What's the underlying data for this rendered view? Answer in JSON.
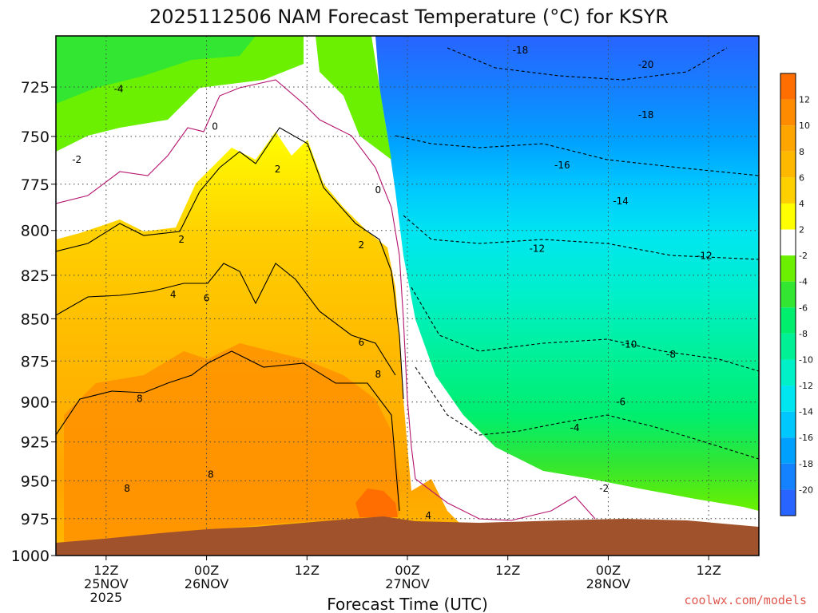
{
  "chart_data": {
    "type": "heatmap",
    "title": "2025112506 NAM Forecast Temperature (°C) for KSYR",
    "xlabel": "Forecast Time (UTC)",
    "credit": "coolwx.com/models",
    "y_axis": {
      "quantity": "pressure (hPa)",
      "inverted": true,
      "range": [
        700,
        1000
      ],
      "ticks": [
        725,
        750,
        775,
        800,
        825,
        850,
        875,
        900,
        925,
        950,
        975,
        1000
      ]
    },
    "x_axis": {
      "range_hours": [
        0,
        84
      ],
      "ticks": [
        {
          "hour": 6,
          "label": "12Z",
          "sub": "25NOV",
          "sub2": "2025"
        },
        {
          "hour": 18,
          "label": "00Z",
          "sub": "26NOV",
          "sub2": ""
        },
        {
          "hour": 30,
          "label": "12Z",
          "sub": "",
          "sub2": ""
        },
        {
          "hour": 42,
          "label": "00Z",
          "sub": "27NOV",
          "sub2": ""
        },
        {
          "hour": 54,
          "label": "12Z",
          "sub": "",
          "sub2": ""
        },
        {
          "hour": 66,
          "label": "00Z",
          "sub": "28NOV",
          "sub2": ""
        },
        {
          "hour": 78,
          "label": "12Z",
          "sub": "",
          "sub2": ""
        }
      ]
    },
    "grid": true,
    "colorbar": {
      "placement": "right",
      "levels": [
        {
          "label": "",
          "color": "#ff6e00"
        },
        {
          "label": "12",
          "color": "#ff8c00"
        },
        {
          "label": "10",
          "color": "#ffa500"
        },
        {
          "label": "8",
          "color": "#ffb800"
        },
        {
          "label": "6",
          "color": "#ffd000"
        },
        {
          "label": "4",
          "color": "#ffff00"
        },
        {
          "label": "2",
          "color": "#ffffff"
        },
        {
          "label": "-2",
          "color": "#6af000"
        },
        {
          "label": "-4",
          "color": "#32e632"
        },
        {
          "label": "-6",
          "color": "#00ee6e"
        },
        {
          "label": "-8",
          "color": "#00f096"
        },
        {
          "label": "-10",
          "color": "#00f0c8"
        },
        {
          "label": "-12",
          "color": "#00e6f0"
        },
        {
          "label": "-14",
          "color": "#00c8ff"
        },
        {
          "label": "-16",
          "color": "#00a0ff"
        },
        {
          "label": "-18",
          "color": "#1482ff"
        },
        {
          "label": "-20",
          "color": "#2864ff"
        }
      ]
    },
    "terrain_color": "#a0522d",
    "freezing_line_color": "#b4146e",
    "contour_labels": [
      {
        "text": "-18",
        "hour": 55.5,
        "p": 707
      },
      {
        "text": "-20",
        "hour": 70.5,
        "p": 714
      },
      {
        "text": "-4",
        "hour": 7.5,
        "p": 726
      },
      {
        "text": "-18",
        "hour": 70.5,
        "p": 739
      },
      {
        "text": "0",
        "hour": 19.0,
        "p": 745
      },
      {
        "text": "-16",
        "hour": 60.5,
        "p": 765
      },
      {
        "text": "-2",
        "hour": 2.5,
        "p": 762
      },
      {
        "text": "2",
        "hour": 26.5,
        "p": 767
      },
      {
        "text": "0",
        "hour": 38.5,
        "p": 778
      },
      {
        "text": "-14",
        "hour": 67.5,
        "p": 784
      },
      {
        "text": "2",
        "hour": 15.0,
        "p": 805
      },
      {
        "text": "2",
        "hour": 36.5,
        "p": 808
      },
      {
        "text": "-12",
        "hour": 57.5,
        "p": 810
      },
      {
        "text": "-12",
        "hour": 77.5,
        "p": 814
      },
      {
        "text": "4",
        "hour": 14.0,
        "p": 836
      },
      {
        "text": "6",
        "hour": 18.0,
        "p": 838
      },
      {
        "text": "-10",
        "hour": 68.5,
        "p": 865
      },
      {
        "text": "6",
        "hour": 36.5,
        "p": 864
      },
      {
        "text": "-8",
        "hour": 73.5,
        "p": 871
      },
      {
        "text": "8",
        "hour": 38.5,
        "p": 883
      },
      {
        "text": "8",
        "hour": 10.0,
        "p": 898
      },
      {
        "text": "-6",
        "hour": 67.5,
        "p": 900
      },
      {
        "text": "-4",
        "hour": 62.0,
        "p": 916
      },
      {
        "text": "8",
        "hour": 18.5,
        "p": 946
      },
      {
        "text": "8",
        "hour": 8.5,
        "p": 955
      },
      {
        "text": "-2",
        "hour": 65.5,
        "p": 955
      },
      {
        "text": "4",
        "hour": 44.5,
        "p": 973
      }
    ]
  }
}
